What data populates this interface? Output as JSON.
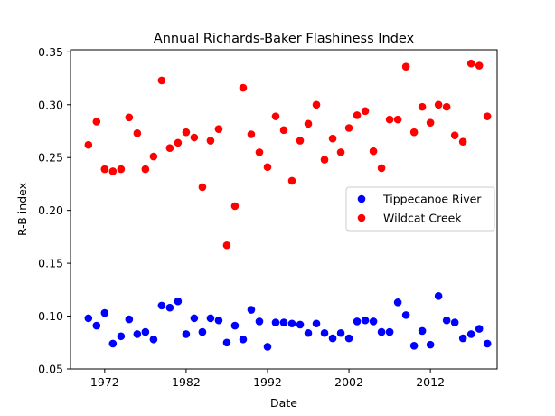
{
  "chart_data": {
    "type": "scatter",
    "title": "Annual Richards-Baker Flashiness Index",
    "xlabel": "Date",
    "ylabel": "R-B index",
    "xlim": [
      1967.8,
      2020.2
    ],
    "ylim": [
      0.05,
      0.352
    ],
    "xticks": [
      1972,
      1982,
      1992,
      2002,
      2012
    ],
    "xtick_labels": [
      "1972",
      "1982",
      "1992",
      "2002",
      "2012"
    ],
    "yticks": [
      0.05,
      0.1,
      0.15,
      0.2,
      0.25,
      0.3,
      0.35
    ],
    "ytick_labels": [
      "0.05",
      "0.10",
      "0.15",
      "0.20",
      "0.25",
      "0.30",
      "0.35"
    ],
    "grid": false,
    "legend_position": "center-right",
    "x": [
      1970,
      1971,
      1972,
      1973,
      1974,
      1975,
      1976,
      1977,
      1978,
      1979,
      1980,
      1981,
      1982,
      1983,
      1984,
      1985,
      1986,
      1987,
      1988,
      1989,
      1990,
      1991,
      1992,
      1993,
      1994,
      1995,
      1996,
      1997,
      1998,
      1999,
      2000,
      2001,
      2002,
      2003,
      2004,
      2005,
      2006,
      2007,
      2008,
      2009,
      2010,
      2011,
      2012,
      2013,
      2014,
      2015,
      2016,
      2017,
      2018,
      2019
    ],
    "series": [
      {
        "name": "Tippecanoe River",
        "color": "#0000ff",
        "values": [
          0.098,
          0.091,
          0.103,
          0.074,
          0.081,
          0.097,
          0.083,
          0.085,
          0.078,
          0.11,
          0.108,
          0.114,
          0.083,
          0.098,
          0.085,
          0.098,
          0.096,
          0.075,
          0.091,
          0.078,
          0.106,
          0.095,
          0.071,
          0.094,
          0.094,
          0.093,
          0.092,
          0.084,
          0.093,
          0.084,
          0.079,
          0.084,
          0.079,
          0.095,
          0.096,
          0.095,
          0.085,
          0.085,
          0.113,
          0.101,
          0.072,
          0.086,
          0.073,
          0.119,
          0.096,
          0.094,
          0.079,
          0.083,
          0.088,
          0.074
        ]
      },
      {
        "name": "Wildcat Creek",
        "color": "#ff0000",
        "values": [
          0.262,
          0.284,
          0.239,
          0.237,
          0.239,
          0.288,
          0.273,
          0.239,
          0.251,
          0.323,
          0.259,
          0.264,
          0.274,
          0.269,
          0.222,
          0.266,
          0.277,
          0.167,
          0.204,
          0.316,
          0.272,
          0.255,
          0.241,
          0.289,
          0.276,
          0.228,
          0.266,
          0.282,
          0.3,
          0.248,
          0.268,
          0.255,
          0.278,
          0.29,
          0.294,
          0.256,
          0.24,
          0.286,
          0.286,
          0.336,
          0.274,
          0.298,
          0.283,
          0.3,
          0.298,
          0.271,
          0.265,
          0.339,
          0.337,
          0.289
        ]
      }
    ]
  }
}
